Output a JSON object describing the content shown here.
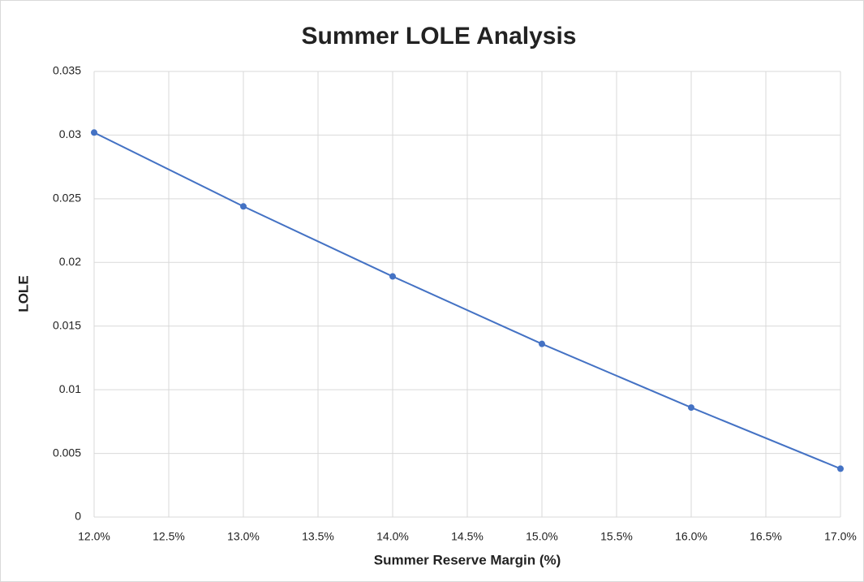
{
  "chart_data": {
    "type": "line",
    "title": "Summer LOLE Analysis",
    "x_label": "Summer Reserve Margin (%)",
    "y_label": "LOLE",
    "x": [
      12,
      13,
      14,
      15,
      16,
      17
    ],
    "series": [
      {
        "name": "LOLE",
        "color": "#4472c4",
        "values": [
          0.0302,
          0.0244,
          0.0189,
          0.0136,
          0.0086,
          0.0038
        ]
      }
    ],
    "xlim": [
      12,
      17
    ],
    "xticks": [
      {
        "value": 12,
        "label": "12.0%"
      },
      {
        "value": 12.5,
        "label": "12.5%"
      },
      {
        "value": 13,
        "label": "13.0%"
      },
      {
        "value": 13.5,
        "label": "13.5%"
      },
      {
        "value": 14,
        "label": "14.0%"
      },
      {
        "value": 14.5,
        "label": "14.5%"
      },
      {
        "value": 15,
        "label": "15.0%"
      },
      {
        "value": 15.5,
        "label": "15.5%"
      },
      {
        "value": 16,
        "label": "16.0%"
      },
      {
        "value": 16.5,
        "label": "16.5%"
      },
      {
        "value": 17,
        "label": "17.0%"
      }
    ],
    "ylim": [
      0,
      0.035
    ],
    "yticks": [
      0,
      0.005,
      0.01,
      0.015,
      0.02,
      0.025,
      0.03,
      0.035
    ],
    "grid": true
  }
}
